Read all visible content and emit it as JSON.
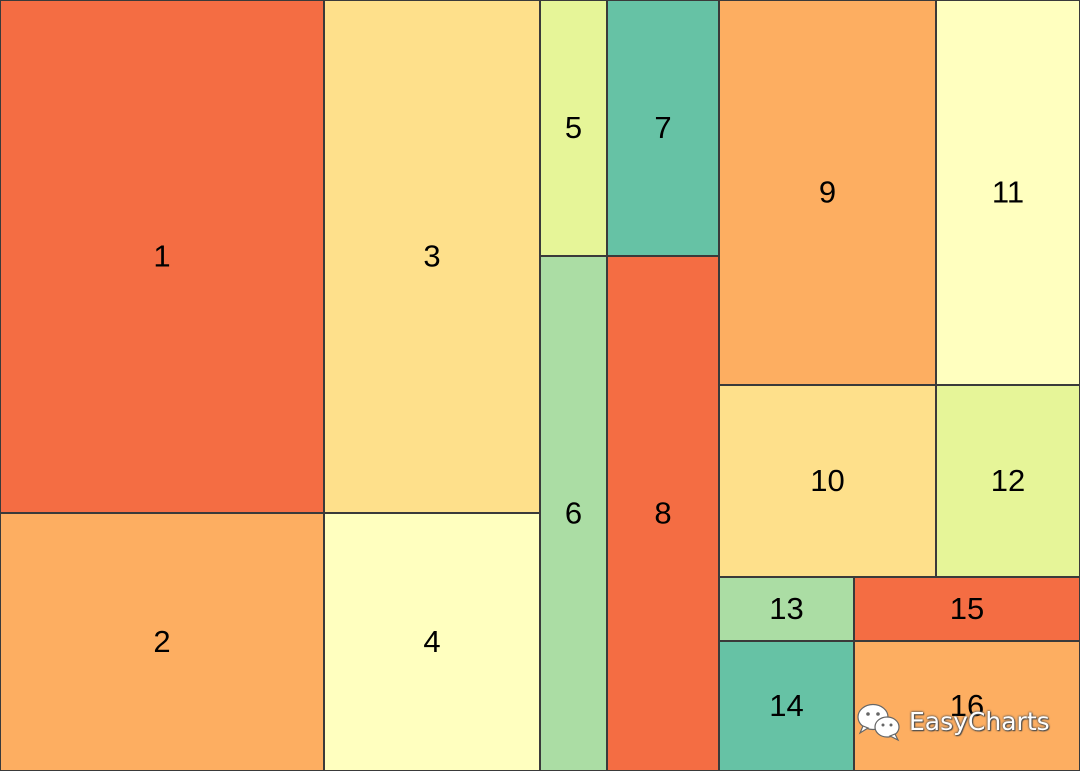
{
  "chart_data": {
    "type": "treemap",
    "cells": [
      {
        "label": "1",
        "color": "#F46D43"
      },
      {
        "label": "2",
        "color": "#FDAE61"
      },
      {
        "label": "3",
        "color": "#FEE08B"
      },
      {
        "label": "4",
        "color": "#FFFFBF"
      },
      {
        "label": "5",
        "color": "#E6F598"
      },
      {
        "label": "6",
        "color": "#ABDDA4"
      },
      {
        "label": "7",
        "color": "#66C2A5"
      },
      {
        "label": "8",
        "color": "#F46D43"
      },
      {
        "label": "9",
        "color": "#FDAE61"
      },
      {
        "label": "10",
        "color": "#FEE08B"
      },
      {
        "label": "11",
        "color": "#FFFFBF"
      },
      {
        "label": "12",
        "color": "#E6F598"
      },
      {
        "label": "13",
        "color": "#ABDDA4"
      },
      {
        "label": "14",
        "color": "#66C2A5"
      },
      {
        "label": "15",
        "color": "#F46D43"
      },
      {
        "label": "16",
        "color": "#FDAE61"
      }
    ]
  },
  "watermark": {
    "text": "EasyCharts",
    "icon": "wechat-icon"
  }
}
